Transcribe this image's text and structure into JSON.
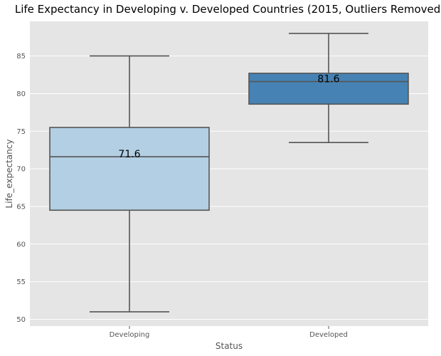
{
  "chart_data": {
    "type": "box",
    "title": "Life Expectancy in Developing v. Developed Countries (2015, Outliers Removed)",
    "xlabel": "Status",
    "ylabel": "Life_expectancy",
    "categories": [
      "Developing",
      "Developed"
    ],
    "ylim": [
      49.1,
      89.6
    ],
    "y_ticks": [
      50,
      55,
      60,
      65,
      70,
      75,
      80,
      85
    ],
    "grid": true,
    "background_color": "#e5e5e5",
    "grid_color": "#ffffff",
    "line_color": "#555555",
    "boxes": [
      {
        "category": "Developing",
        "whisker_low": 51.0,
        "q1": 64.5,
        "median": 71.6,
        "q3": 75.5,
        "whisker_high": 85.0,
        "label": "71.6",
        "color": "#b3cfe3"
      },
      {
        "category": "Developed",
        "whisker_low": 73.5,
        "q1": 78.6,
        "median": 81.6,
        "q3": 82.7,
        "whisker_high": 88.0,
        "label": "81.6",
        "color": "#4682b4"
      }
    ]
  }
}
